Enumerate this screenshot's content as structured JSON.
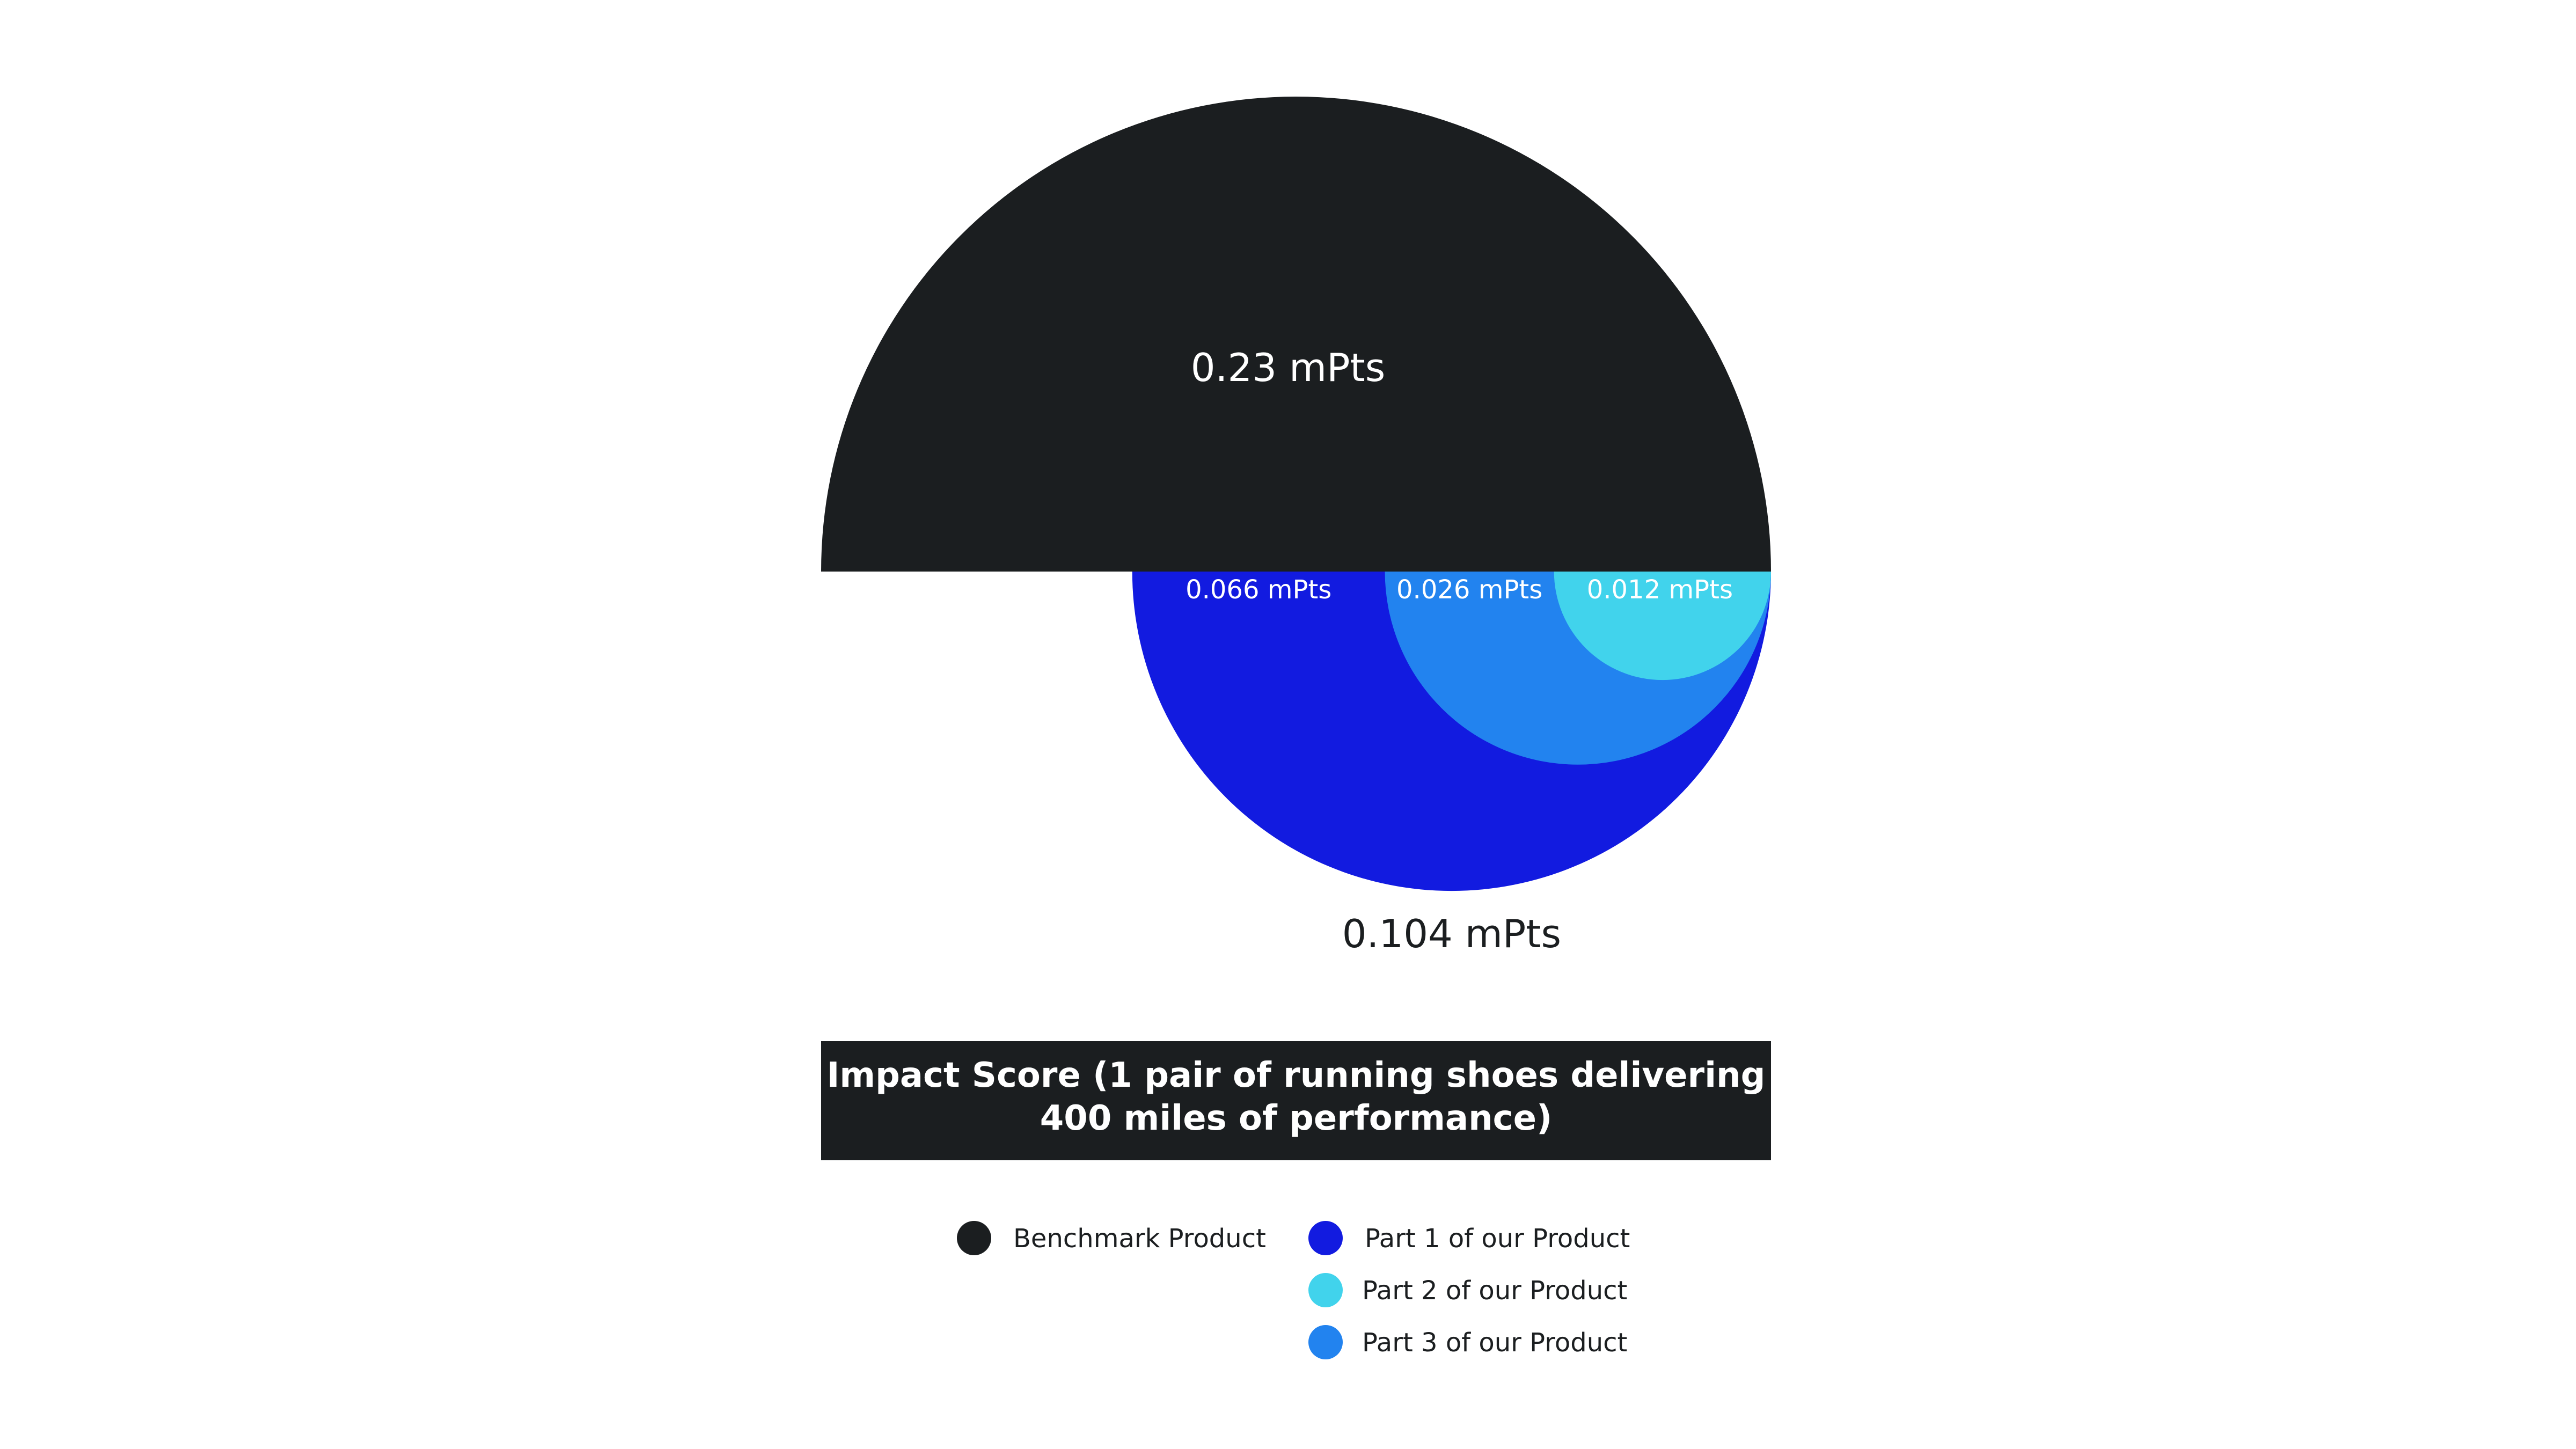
{
  "chart_data": {
    "type": "proportional-area",
    "title_lines": [
      "Impact Score (1 pair of running shoes delivering",
      "400 miles of performance)"
    ],
    "unit": "mPts",
    "benchmark": {
      "name": "Benchmark Product",
      "value": 0.23,
      "label": "0.23 mPts",
      "color": "#1b1e20"
    },
    "total": {
      "value": 0.104,
      "label": "0.104 mPts"
    },
    "parts": [
      {
        "name": "Part 1 of our Product",
        "value": 0.066,
        "label": "0.066 mPts",
        "color": "#121be0"
      },
      {
        "name": "Part 2 of our Product",
        "value": 0.012,
        "label": "0.012 mPts",
        "color": "#41d3ec"
      },
      {
        "name": "Part 3 of our Product",
        "value": 0.026,
        "label": "0.026 mPts",
        "color": "#2283ef"
      }
    ],
    "legend": [
      {
        "name": "Benchmark Product",
        "color": "#1b1e20"
      },
      {
        "name": "Part 1 of our Product",
        "color": "#121be0"
      },
      {
        "name": "Part 2 of our Product",
        "color": "#41d3ec"
      },
      {
        "name": "Part 3 of our Product",
        "color": "#2283ef"
      }
    ]
  }
}
